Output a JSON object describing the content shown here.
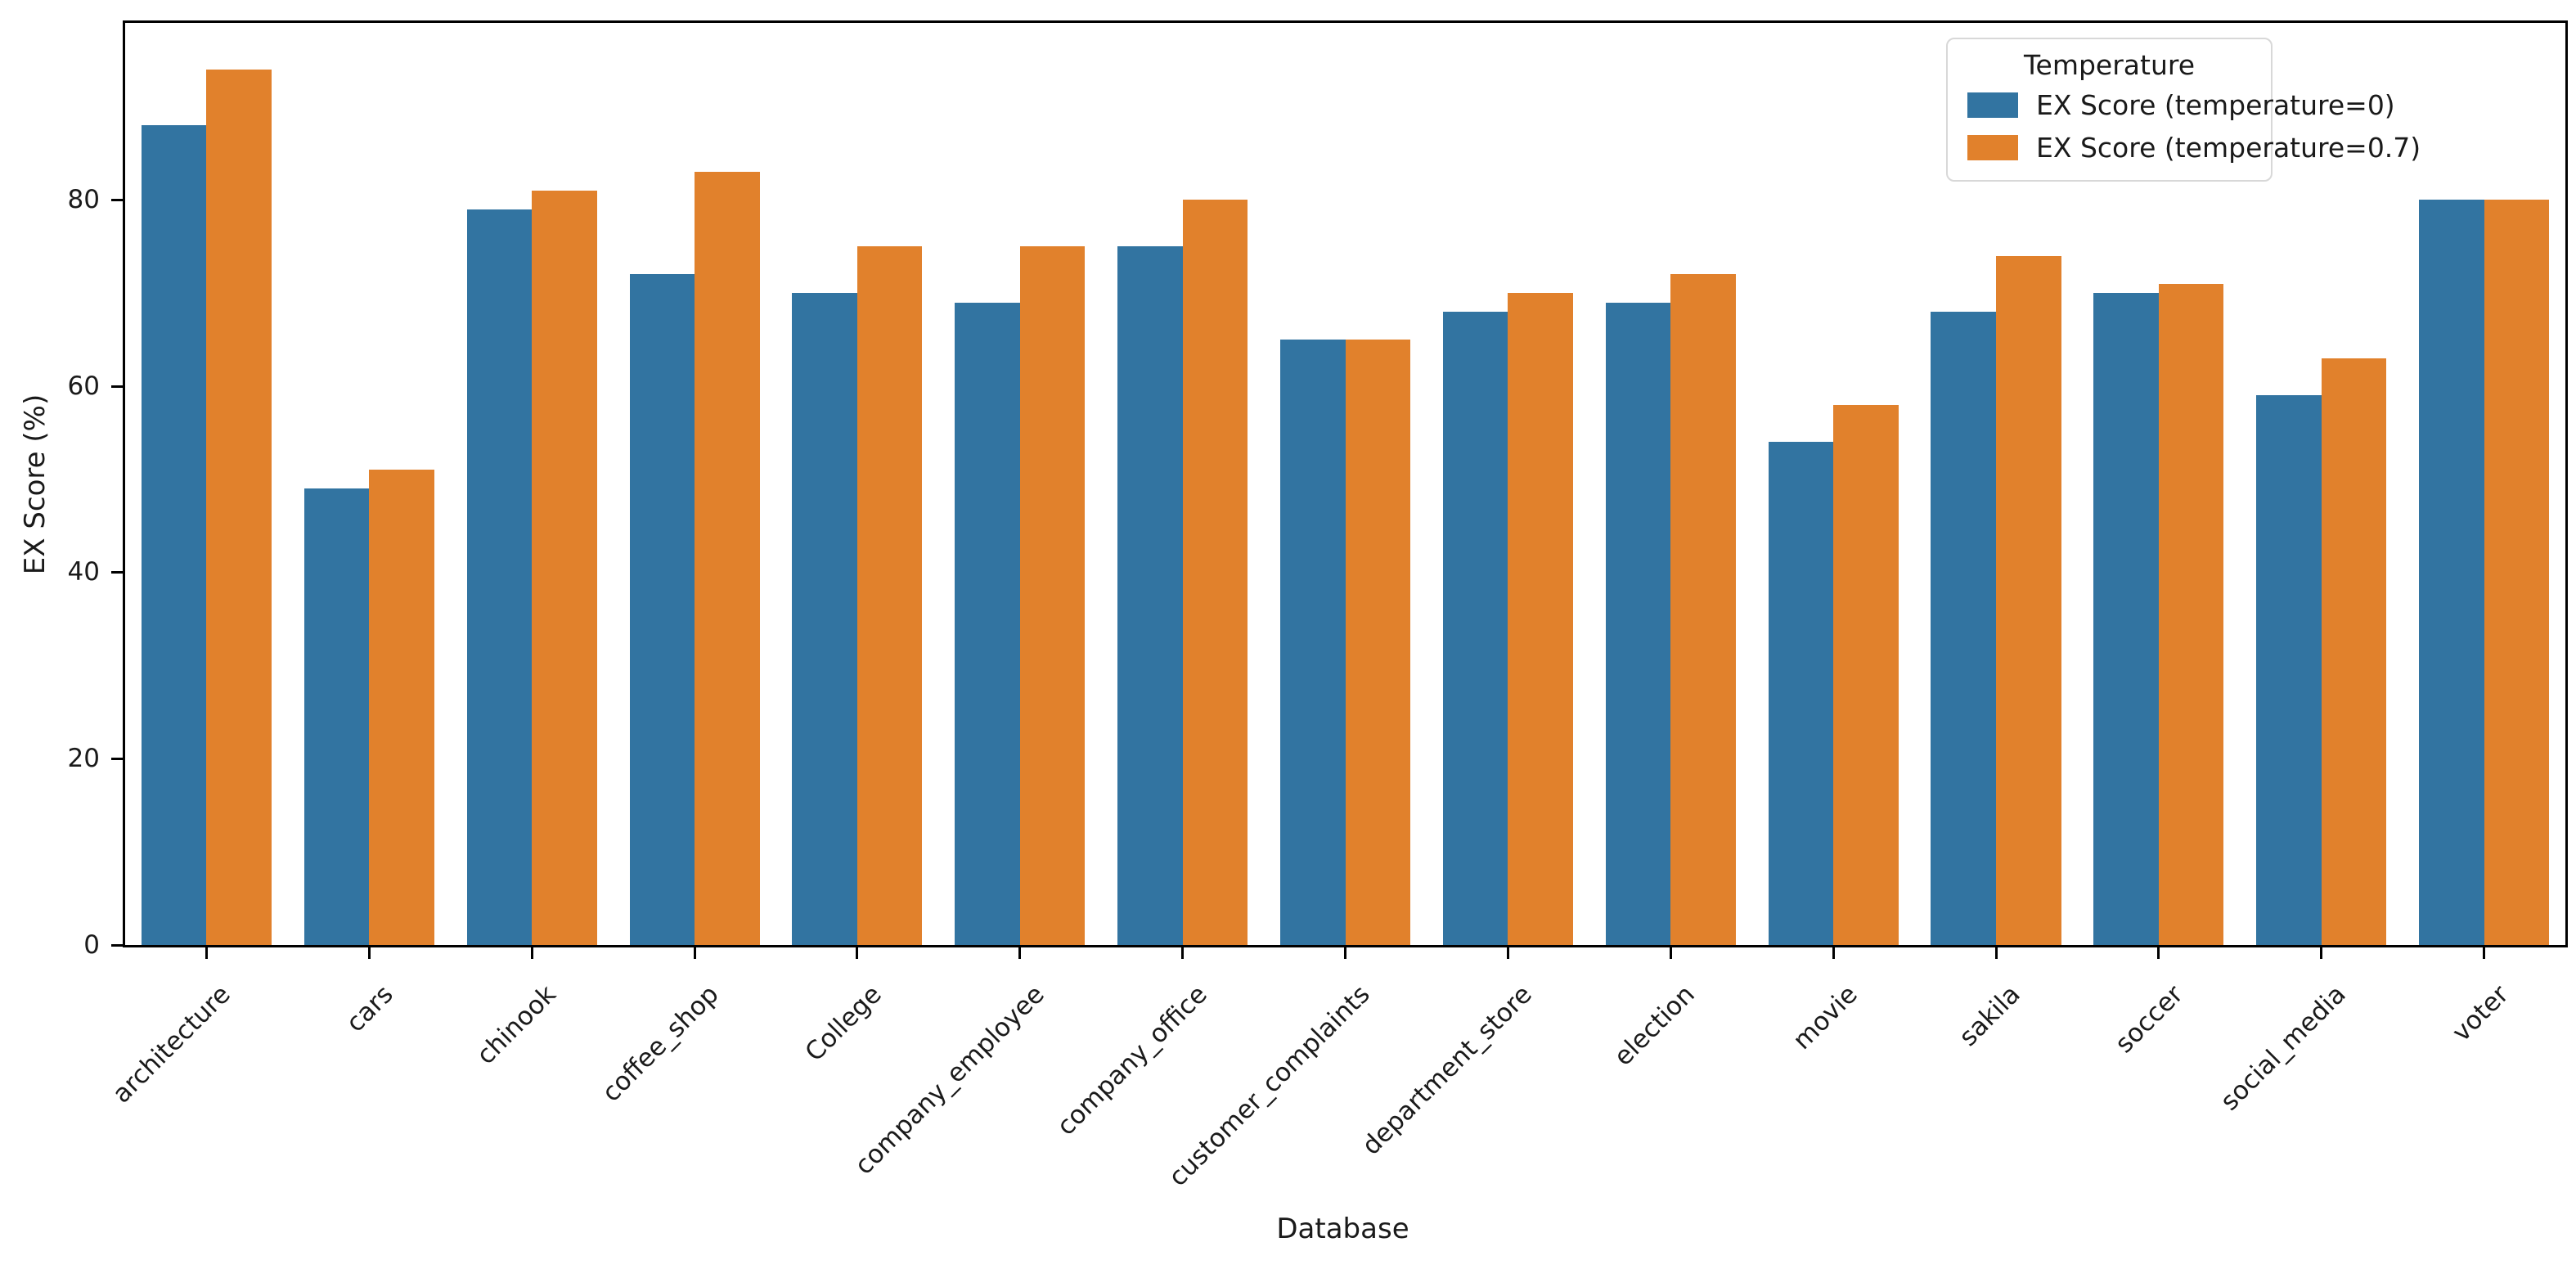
{
  "chart_data": {
    "type": "bar",
    "title": "",
    "xlabel": "Database",
    "ylabel": "EX Score (%)",
    "legend_title": "Temperature",
    "legend_position": "upper right",
    "grid": false,
    "categories": [
      "architecture",
      "cars",
      "chinook",
      "coffee_shop",
      "College",
      "company_employee",
      "company_office",
      "customer_complaints",
      "department_store",
      "election",
      "movie",
      "sakila",
      "soccer",
      "social_media",
      "voter"
    ],
    "series": [
      {
        "name": "EX Score (temperature=0)",
        "color": "#3274a1",
        "values": [
          88,
          49,
          79,
          72,
          70,
          69,
          75,
          65,
          68,
          69,
          54,
          68,
          70,
          59,
          80
        ]
      },
      {
        "name": "EX Score (temperature=0.7)",
        "color": "#e1812c",
        "values": [
          94,
          51,
          81,
          83,
          75,
          75,
          80,
          65,
          70,
          72,
          58,
          74,
          71,
          63,
          80
        ]
      }
    ],
    "y_ticks": [
      0,
      20,
      40,
      60,
      80
    ],
    "ylim": [
      0,
      99
    ],
    "axis_color": "#000000",
    "text_color": "#1a1a1a"
  }
}
